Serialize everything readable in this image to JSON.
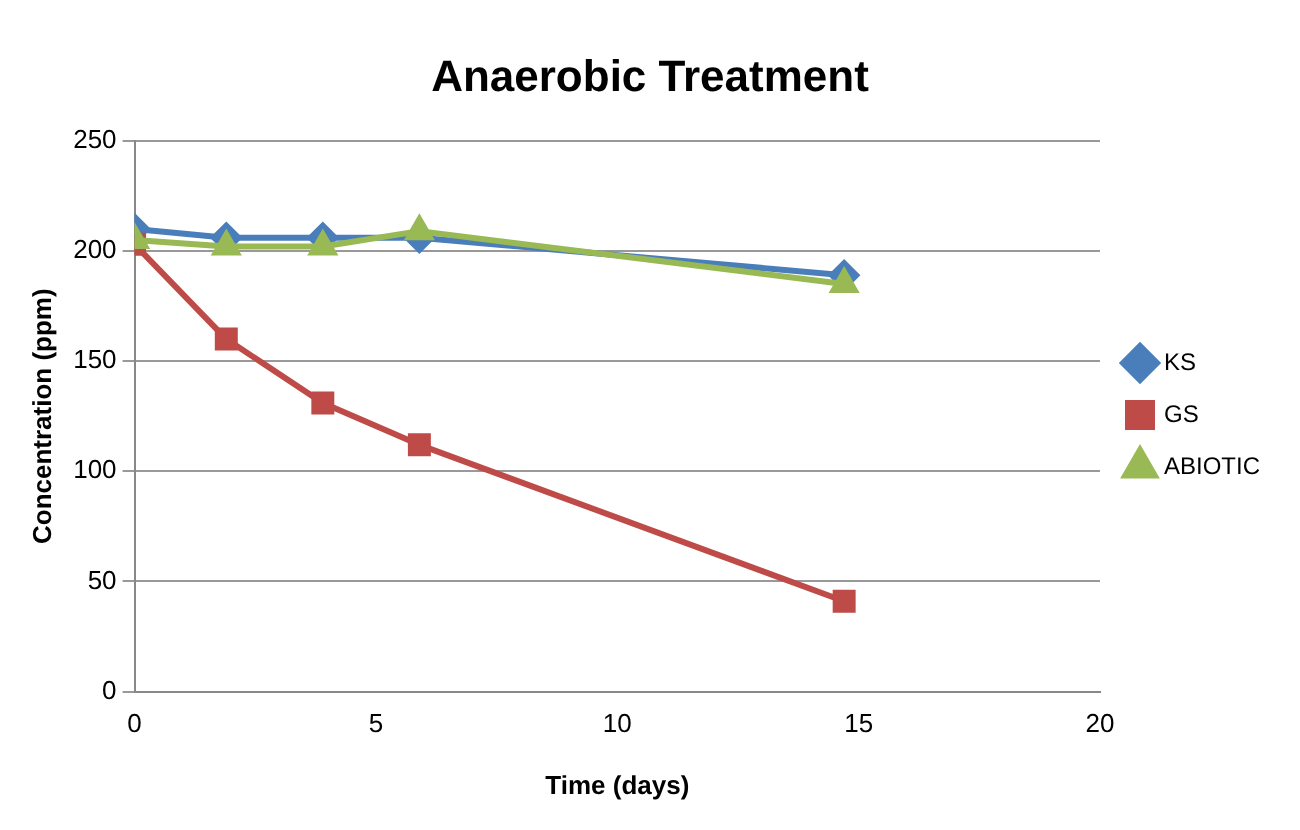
{
  "chart_data": {
    "type": "line",
    "title": "Anaerobic Treatment",
    "xlabel": "Time (days)",
    "ylabel": "Concentration (ppm)",
    "x": [
      0,
      1.9,
      3.9,
      5.9,
      14.7
    ],
    "series": [
      {
        "name": "KS",
        "color": "#4a7ebb",
        "marker": "diamond",
        "values": [
          210,
          206,
          206,
          206,
          189
        ]
      },
      {
        "name": "GS",
        "color": "#be4b48",
        "marker": "square",
        "values": [
          203,
          160,
          131,
          112,
          41
        ]
      },
      {
        "name": "ABIOTIC",
        "color": "#98b954",
        "marker": "triangle",
        "values": [
          205,
          202,
          202,
          209,
          185
        ]
      }
    ],
    "xlim": [
      0,
      20
    ],
    "xticks": [
      0,
      5,
      10,
      15,
      20
    ],
    "ylim": [
      0,
      250
    ],
    "yticks": [
      0,
      50,
      100,
      150,
      200,
      250
    ],
    "grid": "y",
    "legend": "right",
    "line_style": "solid"
  }
}
